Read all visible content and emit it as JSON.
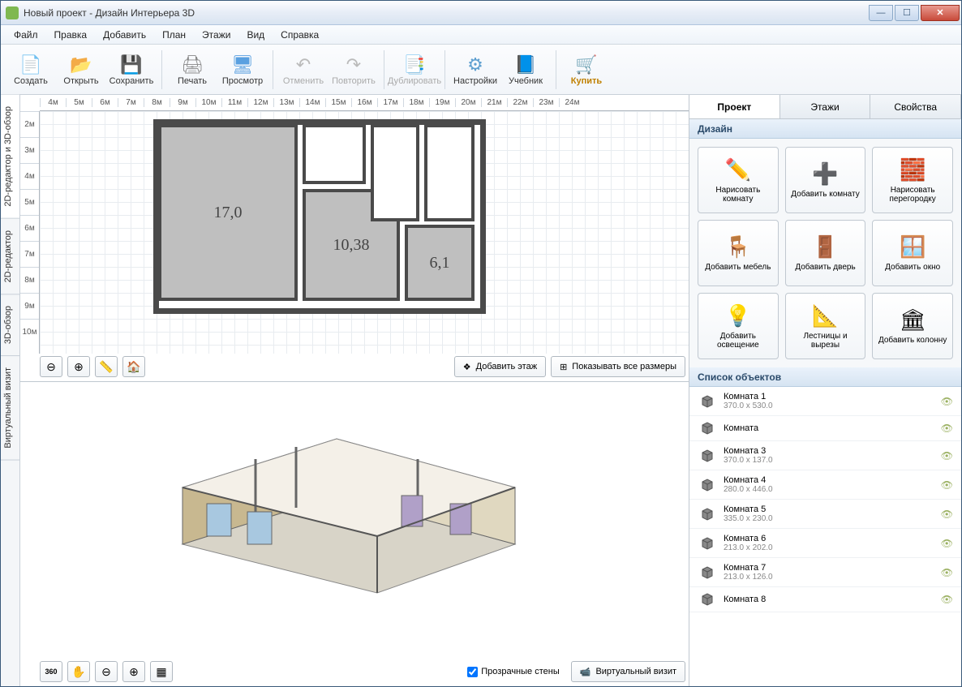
{
  "window": {
    "title": "Новый проект - Дизайн Интерьера 3D"
  },
  "menubar": [
    "Файл",
    "Правка",
    "Добавить",
    "План",
    "Этажи",
    "Вид",
    "Справка"
  ],
  "toolbar": [
    {
      "label": "Создать",
      "icon": "📄",
      "color": "#6aa6e0"
    },
    {
      "label": "Открыть",
      "icon": "📂",
      "color": "#e8b040"
    },
    {
      "label": "Сохранить",
      "icon": "💾",
      "color": "#5a7ac0",
      "dropdown": true
    },
    {
      "sep": true
    },
    {
      "label": "Печать",
      "icon": "🖨",
      "color": "#888"
    },
    {
      "label": "Просмотр",
      "icon": "🖥",
      "color": "#5aa0e0"
    },
    {
      "sep": true
    },
    {
      "label": "Отменить",
      "icon": "↶",
      "color": "#bbb",
      "disabled": true
    },
    {
      "label": "Повторить",
      "icon": "↷",
      "color": "#bbb",
      "disabled": true
    },
    {
      "sep": true
    },
    {
      "label": "Дублировать",
      "icon": "📑",
      "color": "#bbb",
      "disabled": true
    },
    {
      "sep": true
    },
    {
      "label": "Настройки",
      "icon": "⚙",
      "color": "#60a0d0"
    },
    {
      "label": "Учебник",
      "icon": "📘",
      "color": "#5080c0"
    },
    {
      "sep": true
    },
    {
      "label": "Купить",
      "icon": "🛒",
      "color": "#e8a030",
      "buy": true
    }
  ],
  "side_tabs": [
    "2D-редактор и 3D-обзор",
    "2D-редактор",
    "3D-обзор",
    "Виртуальный визит"
  ],
  "ruler_h": [
    "4м",
    "5м",
    "6м",
    "7м",
    "8м",
    "9м",
    "10м",
    "11м",
    "12м",
    "13м",
    "14м",
    "15м",
    "16м",
    "17м",
    "18м",
    "19м",
    "20м",
    "21м",
    "22м",
    "23м",
    "24м"
  ],
  "ruler_v": [
    "2м",
    "3м",
    "4м",
    "5м",
    "6м",
    "7м",
    "8м",
    "9м",
    "10м"
  ],
  "floorplan": {
    "rooms": [
      {
        "label": "17,0",
        "class": "r1"
      },
      {
        "label": "10,38",
        "class": "r2"
      },
      {
        "label": "6,1",
        "class": "r3"
      },
      {
        "label": "",
        "class": "r4"
      },
      {
        "label": "",
        "class": "r5"
      },
      {
        "label": "",
        "class": "r6"
      }
    ]
  },
  "view2d_buttons": {
    "zoom_out": "⊖",
    "zoom_in": "⊕",
    "measure": "📏",
    "home": "🏠",
    "add_floor": "Добавить этаж",
    "show_dims": "Показывать все размеры"
  },
  "view3d_buttons": {
    "rotate": "360",
    "pan": "✋",
    "zoom_out": "⊖",
    "zoom_in": "⊕",
    "walls": "▦",
    "transparent": "Прозрачные стены",
    "virtual": "Виртуальный визит"
  },
  "right_tabs": [
    "Проект",
    "Этажи",
    "Свойства"
  ],
  "design_section": "Дизайн",
  "design_buttons": [
    {
      "label": "Нарисовать комнату",
      "icon": "✏️"
    },
    {
      "label": "Добавить комнату",
      "icon": "➕"
    },
    {
      "label": "Нарисовать перегородку",
      "icon": "🧱"
    },
    {
      "label": "Добавить мебель",
      "icon": "🪑"
    },
    {
      "label": "Добавить дверь",
      "icon": "🚪"
    },
    {
      "label": "Добавить окно",
      "icon": "🪟"
    },
    {
      "label": "Добавить освещение",
      "icon": "💡"
    },
    {
      "label": "Лестницы и вырезы",
      "icon": "📐"
    },
    {
      "label": "Добавить колонну",
      "icon": "🏛"
    }
  ],
  "objects_section": "Список объектов",
  "objects": [
    {
      "name": "Комната 1",
      "dim": "370.0 x 530.0"
    },
    {
      "name": "Комната",
      "dim": ""
    },
    {
      "name": "Комната 3",
      "dim": "370.0 x 137.0"
    },
    {
      "name": "Комната 4",
      "dim": "280.0 x 446.0"
    },
    {
      "name": "Комната 5",
      "dim": "335.0 x 230.0"
    },
    {
      "name": "Комната 6",
      "dim": "213.0 x 202.0"
    },
    {
      "name": "Комната 7",
      "dim": "213.0 x 126.0"
    },
    {
      "name": "Комната 8",
      "dim": ""
    }
  ],
  "colors": {
    "wall": "#4a4a4a",
    "room_fill": "#bfbfbf",
    "accent_blue": "#5a90c8",
    "buy_orange": "#e8a030"
  }
}
